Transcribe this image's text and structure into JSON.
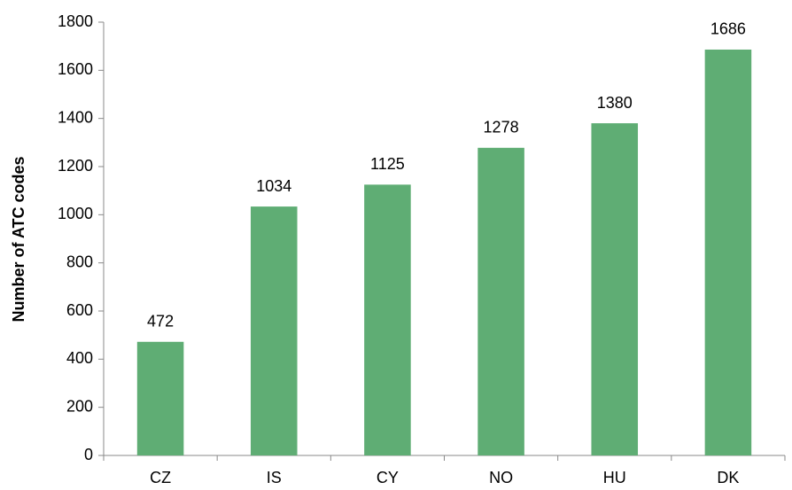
{
  "chart_data": {
    "type": "bar",
    "y_label": "Number of ATC codes",
    "categories": [
      "CZ",
      "IS",
      "CY",
      "NO",
      "HU",
      "DK"
    ],
    "values": [
      472,
      1034,
      1125,
      1278,
      1380,
      1686
    ],
    "color": "#5fad74",
    "ylim": [
      0,
      1800
    ],
    "yticks": [
      0,
      200,
      400,
      600,
      800,
      1000,
      1200,
      1400,
      1600,
      1800
    ],
    "grid": false
  }
}
